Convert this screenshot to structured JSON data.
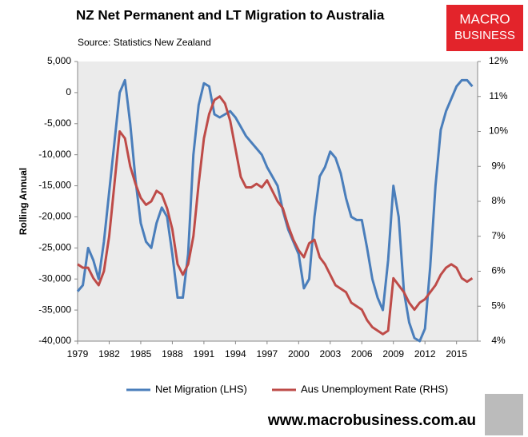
{
  "chart_data": {
    "type": "line",
    "title": "NZ Net Permanent and LT Migration to Australia",
    "subtitle": "Source: Statistics New Zealand",
    "logo": [
      "MACRO",
      "BUSINESS"
    ],
    "footer": "www.macrobusiness.com.au",
    "y_label": "Rolling Annual",
    "x": [
      1979,
      1979.5,
      1980,
      1980.5,
      1981,
      1981.5,
      1982,
      1982.5,
      1983,
      1983.5,
      1984,
      1984.5,
      1985,
      1985.5,
      1986,
      1986.5,
      1987,
      1987.5,
      1988,
      1988.5,
      1989,
      1989.5,
      1990,
      1990.5,
      1991,
      1991.5,
      1992,
      1992.5,
      1993,
      1993.5,
      1994,
      1994.5,
      1995,
      1995.5,
      1996,
      1996.5,
      1997,
      1997.5,
      1998,
      1998.5,
      1999,
      1999.5,
      2000,
      2000.5,
      2001,
      2001.5,
      2002,
      2002.5,
      2003,
      2003.5,
      2004,
      2004.5,
      2005,
      2005.5,
      2006,
      2006.5,
      2007,
      2007.5,
      2008,
      2008.5,
      2009,
      2009.5,
      2010,
      2010.5,
      2011,
      2011.5,
      2012,
      2012.5,
      2013,
      2013.5,
      2014,
      2014.5,
      2015,
      2015.5,
      2016,
      2016.5
    ],
    "series": [
      {
        "name": "Net Migration (LHS)",
        "color": "#4a7ebb",
        "values": [
          -32000,
          -31000,
          -25000,
          -27000,
          -30000,
          -24000,
          -16000,
          -8000,
          0,
          2000,
          -5000,
          -14000,
          -21000,
          -24000,
          -25000,
          -21000,
          -18500,
          -20000,
          -26000,
          -33000,
          -33000,
          -26000,
          -10000,
          -2000,
          1500,
          1000,
          -3500,
          -4000,
          -3500,
          -3000,
          -4000,
          -5500,
          -7000,
          -8000,
          -9000,
          -10000,
          -12000,
          -13500,
          -15000,
          -19000,
          -22000,
          -24000,
          -26000,
          -31500,
          -30000,
          -20000,
          -13500,
          -12000,
          -9500,
          -10500,
          -13000,
          -17000,
          -20000,
          -20500,
          -20500,
          -25000,
          -30000,
          -33000,
          -35000,
          -27000,
          -15000,
          -20000,
          -32000,
          -37000,
          -39500,
          -40000,
          -38000,
          -28000,
          -15000,
          -6000,
          -3000,
          -1000,
          1000,
          2000,
          2000,
          1000
        ]
      },
      {
        "name": "Aus Unemployment Rate (RHS)",
        "color": "#be4b48",
        "axis": "y2",
        "values": [
          6.2,
          6.1,
          6.1,
          5.8,
          5.6,
          6.0,
          7.0,
          8.5,
          10.0,
          9.8,
          9.0,
          8.5,
          8.1,
          7.9,
          8.0,
          8.3,
          8.2,
          7.8,
          7.2,
          6.2,
          5.9,
          6.2,
          7.0,
          8.5,
          9.8,
          10.5,
          10.9,
          11.0,
          10.8,
          10.3,
          9.5,
          8.7,
          8.4,
          8.4,
          8.5,
          8.4,
          8.6,
          8.3,
          8.0,
          7.8,
          7.3,
          6.9,
          6.6,
          6.4,
          6.8,
          6.9,
          6.4,
          6.2,
          5.9,
          5.6,
          5.5,
          5.4,
          5.1,
          5.0,
          4.9,
          4.6,
          4.4,
          4.3,
          4.2,
          4.3,
          5.8,
          5.6,
          5.4,
          5.1,
          4.9,
          5.1,
          5.2,
          5.4,
          5.6,
          5.9,
          6.1,
          6.2,
          6.1,
          5.8,
          5.7,
          5.8
        ]
      }
    ],
    "xlim": [
      1979,
      2017
    ],
    "xticks": [
      1979,
      1982,
      1985,
      1988,
      1991,
      1994,
      1997,
      2000,
      2003,
      2006,
      2009,
      2012,
      2015
    ],
    "ylim": [
      -40000,
      5000
    ],
    "yticks": [
      {
        "value": -40000,
        "label": "-40,000"
      },
      {
        "value": -35000,
        "label": "-35,000"
      },
      {
        "value": -30000,
        "label": "-30,000"
      },
      {
        "value": -25000,
        "label": "-25,000"
      },
      {
        "value": -20000,
        "label": "-20,000"
      },
      {
        "value": -15000,
        "label": "-15,000"
      },
      {
        "value": -10000,
        "label": "-10,000"
      },
      {
        "value": -5000,
        "label": "-5,000"
      },
      0,
      {
        "value": 5000,
        "label": "5,000"
      }
    ],
    "y2lim": [
      4,
      12
    ],
    "y2ticks": [
      {
        "value": 4,
        "label": "4%"
      },
      {
        "value": 5,
        "label": "5%"
      },
      {
        "value": 6,
        "label": "6%"
      },
      {
        "value": 7,
        "label": "7%"
      },
      {
        "value": 8,
        "label": "8%"
      },
      {
        "value": 9,
        "label": "9%"
      },
      {
        "value": 10,
        "label": "10%"
      },
      {
        "value": 11,
        "label": "11%"
      },
      {
        "value": 12,
        "label": "12%"
      }
    ]
  }
}
